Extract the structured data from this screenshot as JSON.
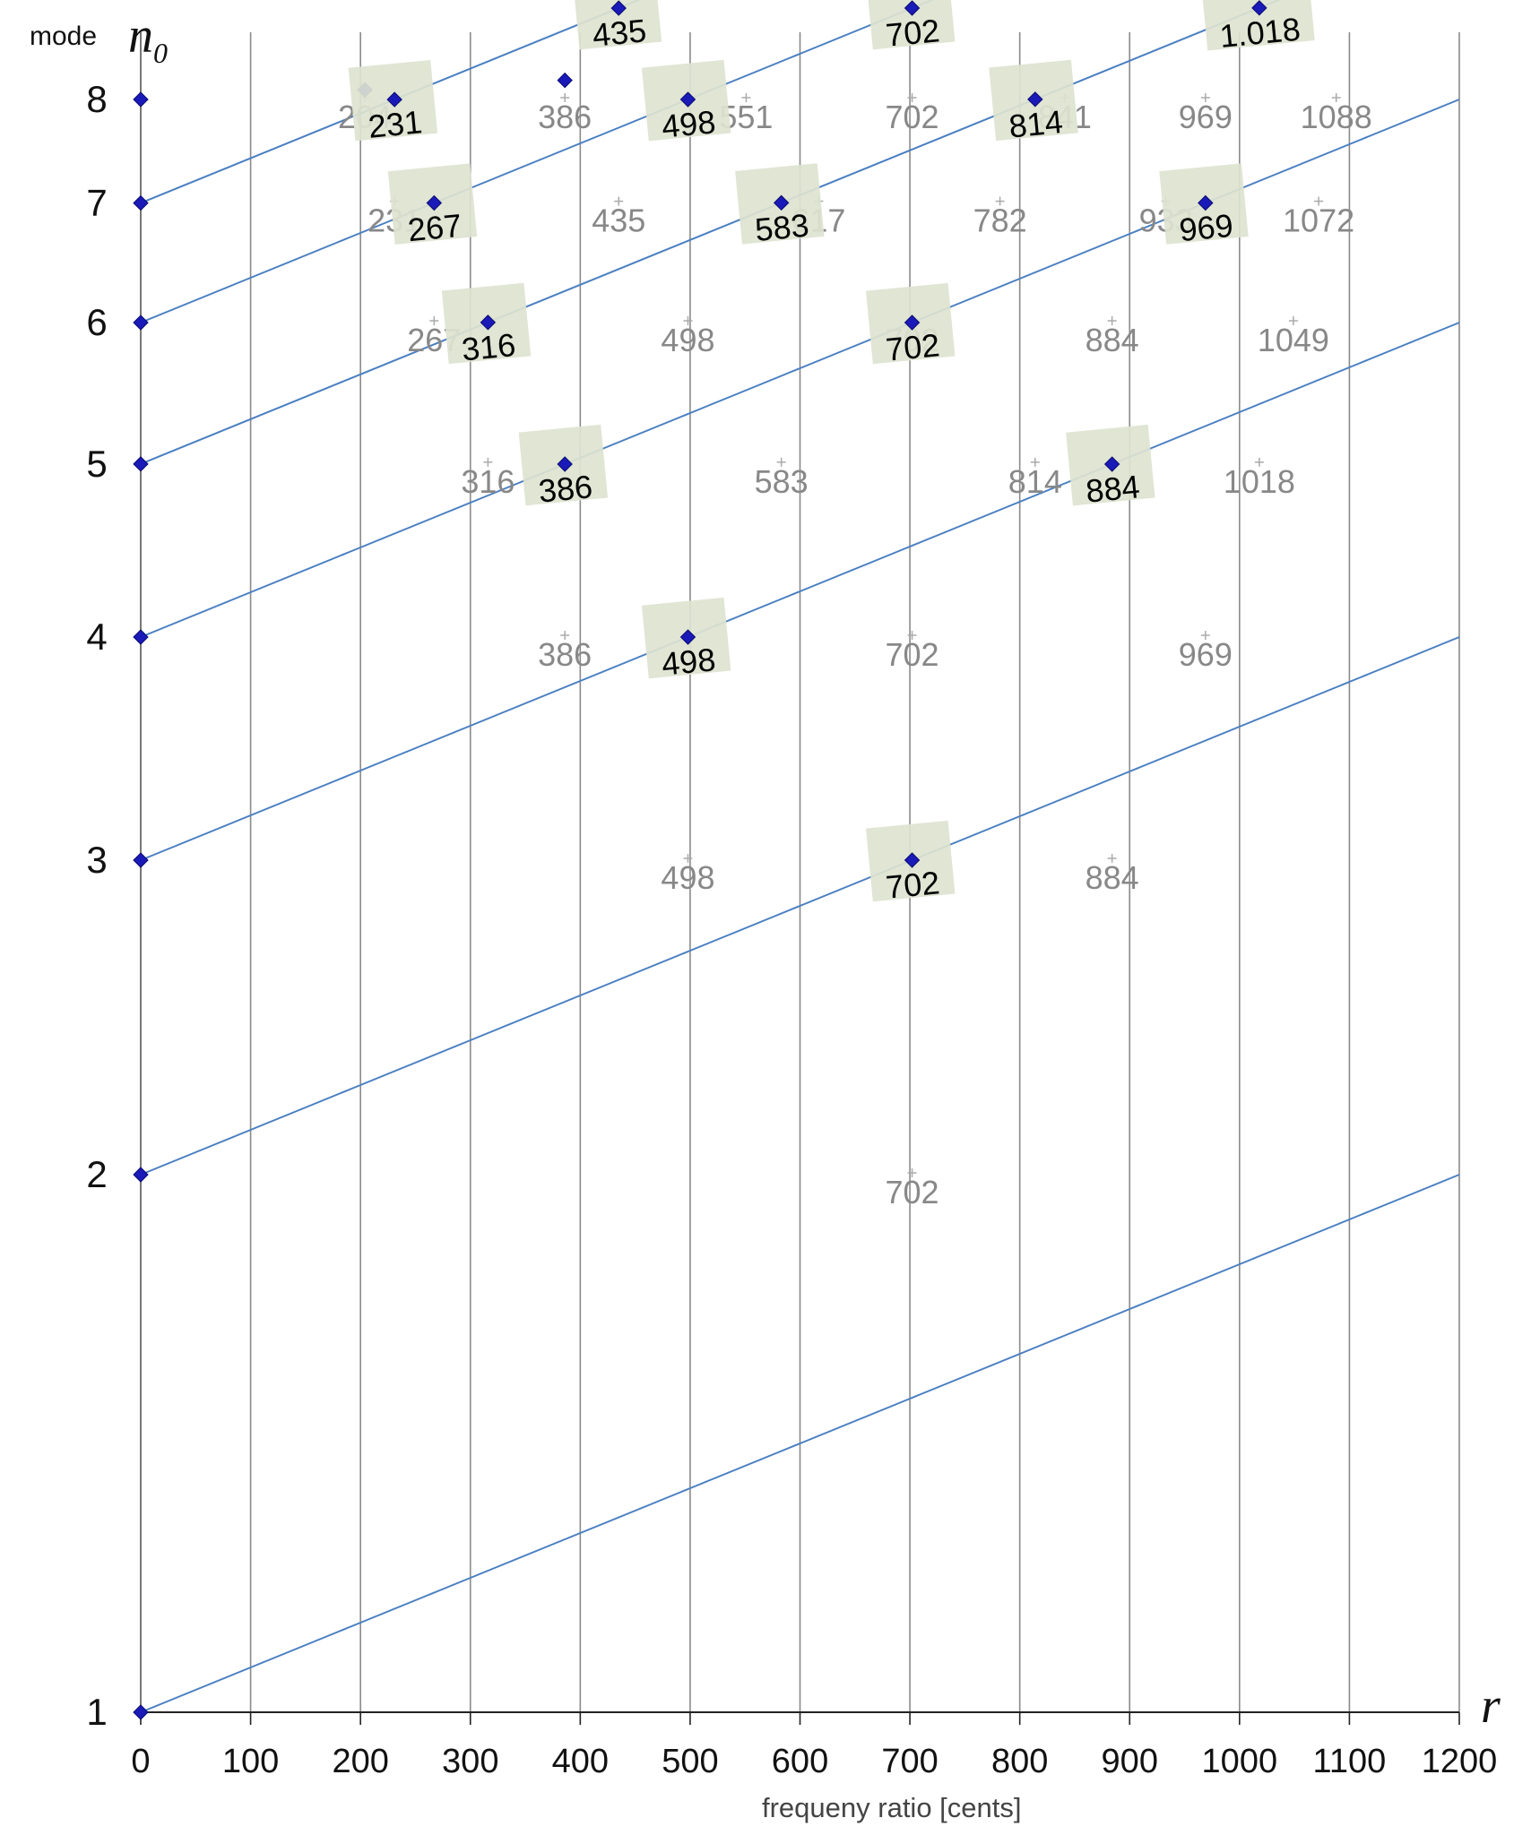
{
  "chart_data": {
    "type": "line",
    "ylabel_prefix": "mode",
    "ylabel_symbol": "n",
    "ylabel_subscript": "0",
    "xlabel_symbol": "r",
    "xlabel": "frequeny ratio [cents]",
    "xlim": [
      0,
      1200
    ],
    "ylim": [
      1,
      8
    ],
    "y_scale": "log",
    "x_ticks": [
      "0",
      "100",
      "200",
      "300",
      "400",
      "500",
      "600",
      "700",
      "800",
      "900",
      "1000",
      "1100",
      "1200"
    ],
    "y_ticks": [
      "1",
      "2",
      "3",
      "4",
      "5",
      "6",
      "7",
      "8"
    ],
    "grid": "vertical lines every 100 cents",
    "colors": {
      "curve": "#4a7fc1",
      "marker": "#1a1ab8",
      "marker_stroke": "#0a0a70",
      "label_bg": "#dde3d0",
      "grey_label": "#888888",
      "grid": "#8a8a8a"
    },
    "curves": [
      {
        "mode": 1
      },
      {
        "mode": 2
      },
      {
        "mode": 3
      },
      {
        "mode": 4
      },
      {
        "mode": 5
      },
      {
        "mode": 6
      },
      {
        "mode": 7
      }
    ],
    "axis_markers": [
      1,
      2,
      3,
      4,
      5,
      6,
      7,
      8
    ],
    "highlighted_points": [
      {
        "x": 702,
        "mode": 2,
        "label": "702"
      },
      {
        "x": 498,
        "mode": 3,
        "label": "498"
      },
      {
        "x": 884,
        "mode": 3,
        "label": "884"
      },
      {
        "x": 386,
        "mode": 4,
        "label": "386"
      },
      {
        "x": 702,
        "mode": 4,
        "label": "702"
      },
      {
        "x": 969,
        "mode": 4,
        "label": "969"
      },
      {
        "x": 316,
        "mode": 5,
        "label": "316"
      },
      {
        "x": 583,
        "mode": 5,
        "label": "583"
      },
      {
        "x": 814,
        "mode": 5,
        "label": "814"
      },
      {
        "x": 1018,
        "mode": 5,
        "label": "1.018"
      },
      {
        "x": 267,
        "mode": 6,
        "label": "267"
      },
      {
        "x": 498,
        "mode": 6,
        "label": "498"
      },
      {
        "x": 702,
        "mode": 6,
        "label": "702"
      },
      {
        "x": 884,
        "mode": 6,
        "label": "884"
      },
      {
        "x": 1049,
        "mode": 6,
        "label": "1.049"
      },
      {
        "x": 231,
        "mode": 7,
        "label": "231"
      },
      {
        "x": 435,
        "mode": 7,
        "label": "435"
      },
      {
        "x": 617,
        "mode": 7,
        "label": "617"
      },
      {
        "x": 782,
        "mode": 7,
        "label": "782"
      },
      {
        "x": 933,
        "mode": 7,
        "label": "933"
      },
      {
        "x": 1072,
        "mode": 7,
        "label": "1.072"
      }
    ],
    "unlabeled_points": [
      {
        "x": 204,
        "y": 8.1
      },
      {
        "x": 386,
        "y": 8.2
      }
    ],
    "reference_labels": [
      {
        "x": 702,
        "y": 2,
        "label": "702"
      },
      {
        "x": 498,
        "y": 3,
        "label": "498"
      },
      {
        "x": 884,
        "y": 3,
        "label": "884"
      },
      {
        "x": 386,
        "y": 4,
        "label": "386"
      },
      {
        "x": 702,
        "y": 4,
        "label": "702"
      },
      {
        "x": 969,
        "y": 4,
        "label": "969"
      },
      {
        "x": 316,
        "y": 5,
        "label": "316"
      },
      {
        "x": 583,
        "y": 5,
        "label": "583"
      },
      {
        "x": 814,
        "y": 5,
        "label": "814"
      },
      {
        "x": 1018,
        "y": 5,
        "label": "1018"
      },
      {
        "x": 267,
        "y": 6,
        "label": "267"
      },
      {
        "x": 498,
        "y": 6,
        "label": "498"
      },
      {
        "x": 702,
        "y": 6,
        "label": "702"
      },
      {
        "x": 884,
        "y": 6,
        "label": "884"
      },
      {
        "x": 1049,
        "y": 6,
        "label": "1049"
      },
      {
        "x": 231,
        "y": 7,
        "label": "231"
      },
      {
        "x": 435,
        "y": 7,
        "label": "435"
      },
      {
        "x": 617,
        "y": 7,
        "label": "617"
      },
      {
        "x": 782,
        "y": 7,
        "label": "782"
      },
      {
        "x": 933,
        "y": 7,
        "label": "933"
      },
      {
        "x": 1072,
        "y": 7,
        "label": "1072"
      },
      {
        "x": 204,
        "y": 8,
        "label": "204"
      },
      {
        "x": 386,
        "y": 8,
        "label": "386"
      },
      {
        "x": 551,
        "y": 8,
        "label": "551"
      },
      {
        "x": 702,
        "y": 8,
        "label": "702"
      },
      {
        "x": 841,
        "y": 8,
        "label": "841"
      },
      {
        "x": 969,
        "y": 8,
        "label": "969"
      },
      {
        "x": 1088,
        "y": 8,
        "label": "1088"
      }
    ]
  }
}
